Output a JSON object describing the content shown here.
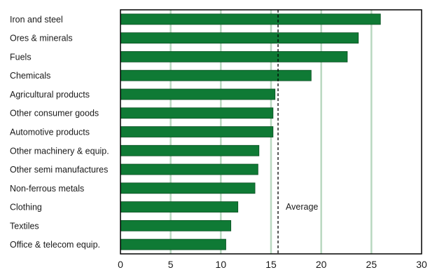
{
  "chart_data": {
    "type": "bar",
    "orientation": "horizontal",
    "categories": [
      "Iron and steel",
      "Ores & minerals",
      "Fuels",
      "Chemicals",
      "Agricultural products",
      "Other consumer goods",
      "Automotive products",
      "Other machinery & equip.",
      "Other semi manufactures",
      "Non-ferrous metals",
      "Clothing",
      "Textiles",
      "Office & telecom equip."
    ],
    "values": [
      25.9,
      23.7,
      22.6,
      19.0,
      15.4,
      15.2,
      15.2,
      13.8,
      13.7,
      13.4,
      11.7,
      11.0,
      10.5
    ],
    "xlim": [
      0,
      30
    ],
    "xticks": [
      "0",
      "5",
      "10",
      "15",
      "20",
      "25",
      "30"
    ],
    "average": 15.7,
    "average_label": "Average",
    "grid": true,
    "colors": {
      "bar": "#0f7a35",
      "bar_edge": "#0a4f22",
      "grid": "#b9d8c0",
      "average_line": "#000000"
    }
  }
}
